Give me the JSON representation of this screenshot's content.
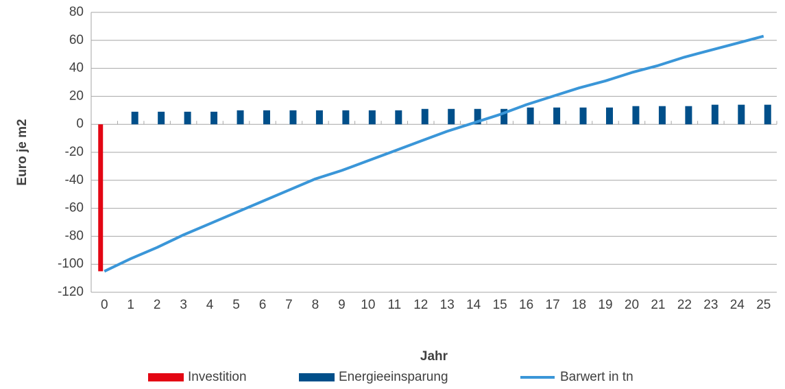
{
  "chart_data": {
    "type": "bar",
    "x_label": "Jahr",
    "y_label": "Euro je m2",
    "categories": [
      "0",
      "1",
      "2",
      "3",
      "4",
      "5",
      "6",
      "7",
      "8",
      "9",
      "10",
      "11",
      "12",
      "13",
      "14",
      "15",
      "16",
      "17",
      "18",
      "19",
      "20",
      "21",
      "22",
      "23",
      "24",
      "25"
    ],
    "series": [
      {
        "name": "Investition",
        "type": "bar",
        "color": "#e30613",
        "values": [
          -105,
          null,
          null,
          null,
          null,
          null,
          null,
          null,
          null,
          null,
          null,
          null,
          null,
          null,
          null,
          null,
          null,
          null,
          null,
          null,
          null,
          null,
          null,
          null,
          null,
          null
        ]
      },
      {
        "name": "Energieeinsparung",
        "type": "bar",
        "color": "#004f8a",
        "values": [
          null,
          9,
          9,
          9,
          9,
          10,
          10,
          10,
          10,
          10,
          10,
          10,
          11,
          11,
          11,
          11,
          12,
          12,
          12,
          12,
          13,
          13,
          13,
          14,
          14,
          14
        ]
      },
      {
        "name": "Barwert in tn",
        "type": "line",
        "color": "#3a96d8",
        "values": [
          -105,
          -96,
          -88,
          -79,
          -71,
          -63,
          -55,
          -47,
          -39,
          -33,
          -26,
          -19,
          -12,
          -5,
          1,
          7,
          14,
          20,
          26,
          31,
          37,
          42,
          48,
          53,
          58,
          63
        ]
      }
    ],
    "ylim": [
      -120,
      80
    ],
    "yticks": [
      -120,
      -100,
      -80,
      -60,
      -40,
      -20,
      0,
      20,
      40,
      60,
      80
    ],
    "grid": true,
    "legend": "bottom"
  }
}
